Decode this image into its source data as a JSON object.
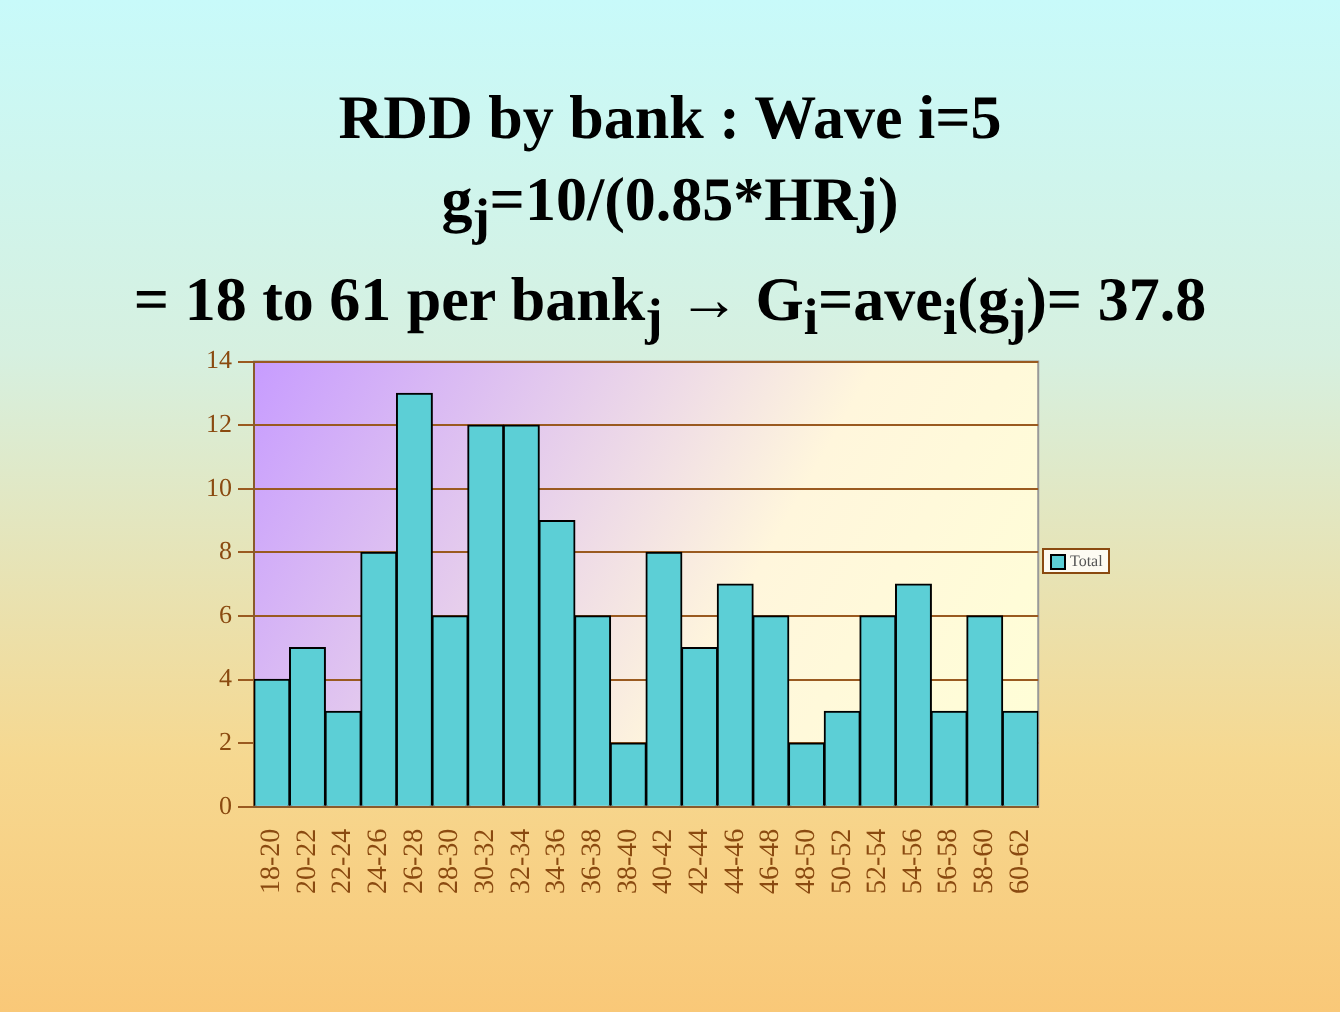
{
  "chart_data": {
    "type": "bar",
    "title": [
      "RDD by bank : Wave i=5",
      "g$_{j}$=10/(0.85*HRj)",
      "= 18 to 61 per bank$_{j}$ → G$_{i}$=ave$_{i}$(g$_{j}$)= 37.8"
    ],
    "categories": [
      "18-20",
      "20-22",
      "22-24",
      "24-26",
      "26-28",
      "28-30",
      "30-32",
      "32-34",
      "34-36",
      "36-38",
      "38-40",
      "40-42",
      "42-44",
      "44-46",
      "46-48",
      "48-50",
      "50-52",
      "52-54",
      "54-56",
      "56-58",
      "58-60",
      "60-62"
    ],
    "series": [
      {
        "name": "Total",
        "color": "#5ccfd6",
        "values": [
          4,
          5,
          3,
          8,
          13,
          6,
          12,
          12,
          9,
          6,
          2,
          8,
          5,
          7,
          6,
          2,
          3,
          6,
          7,
          3,
          6,
          3
        ]
      }
    ],
    "ylim": [
      0,
      14
    ],
    "yticks": [
      0,
      2,
      4,
      6,
      8,
      10,
      12,
      14
    ],
    "grid": "y",
    "legend": "right"
  }
}
